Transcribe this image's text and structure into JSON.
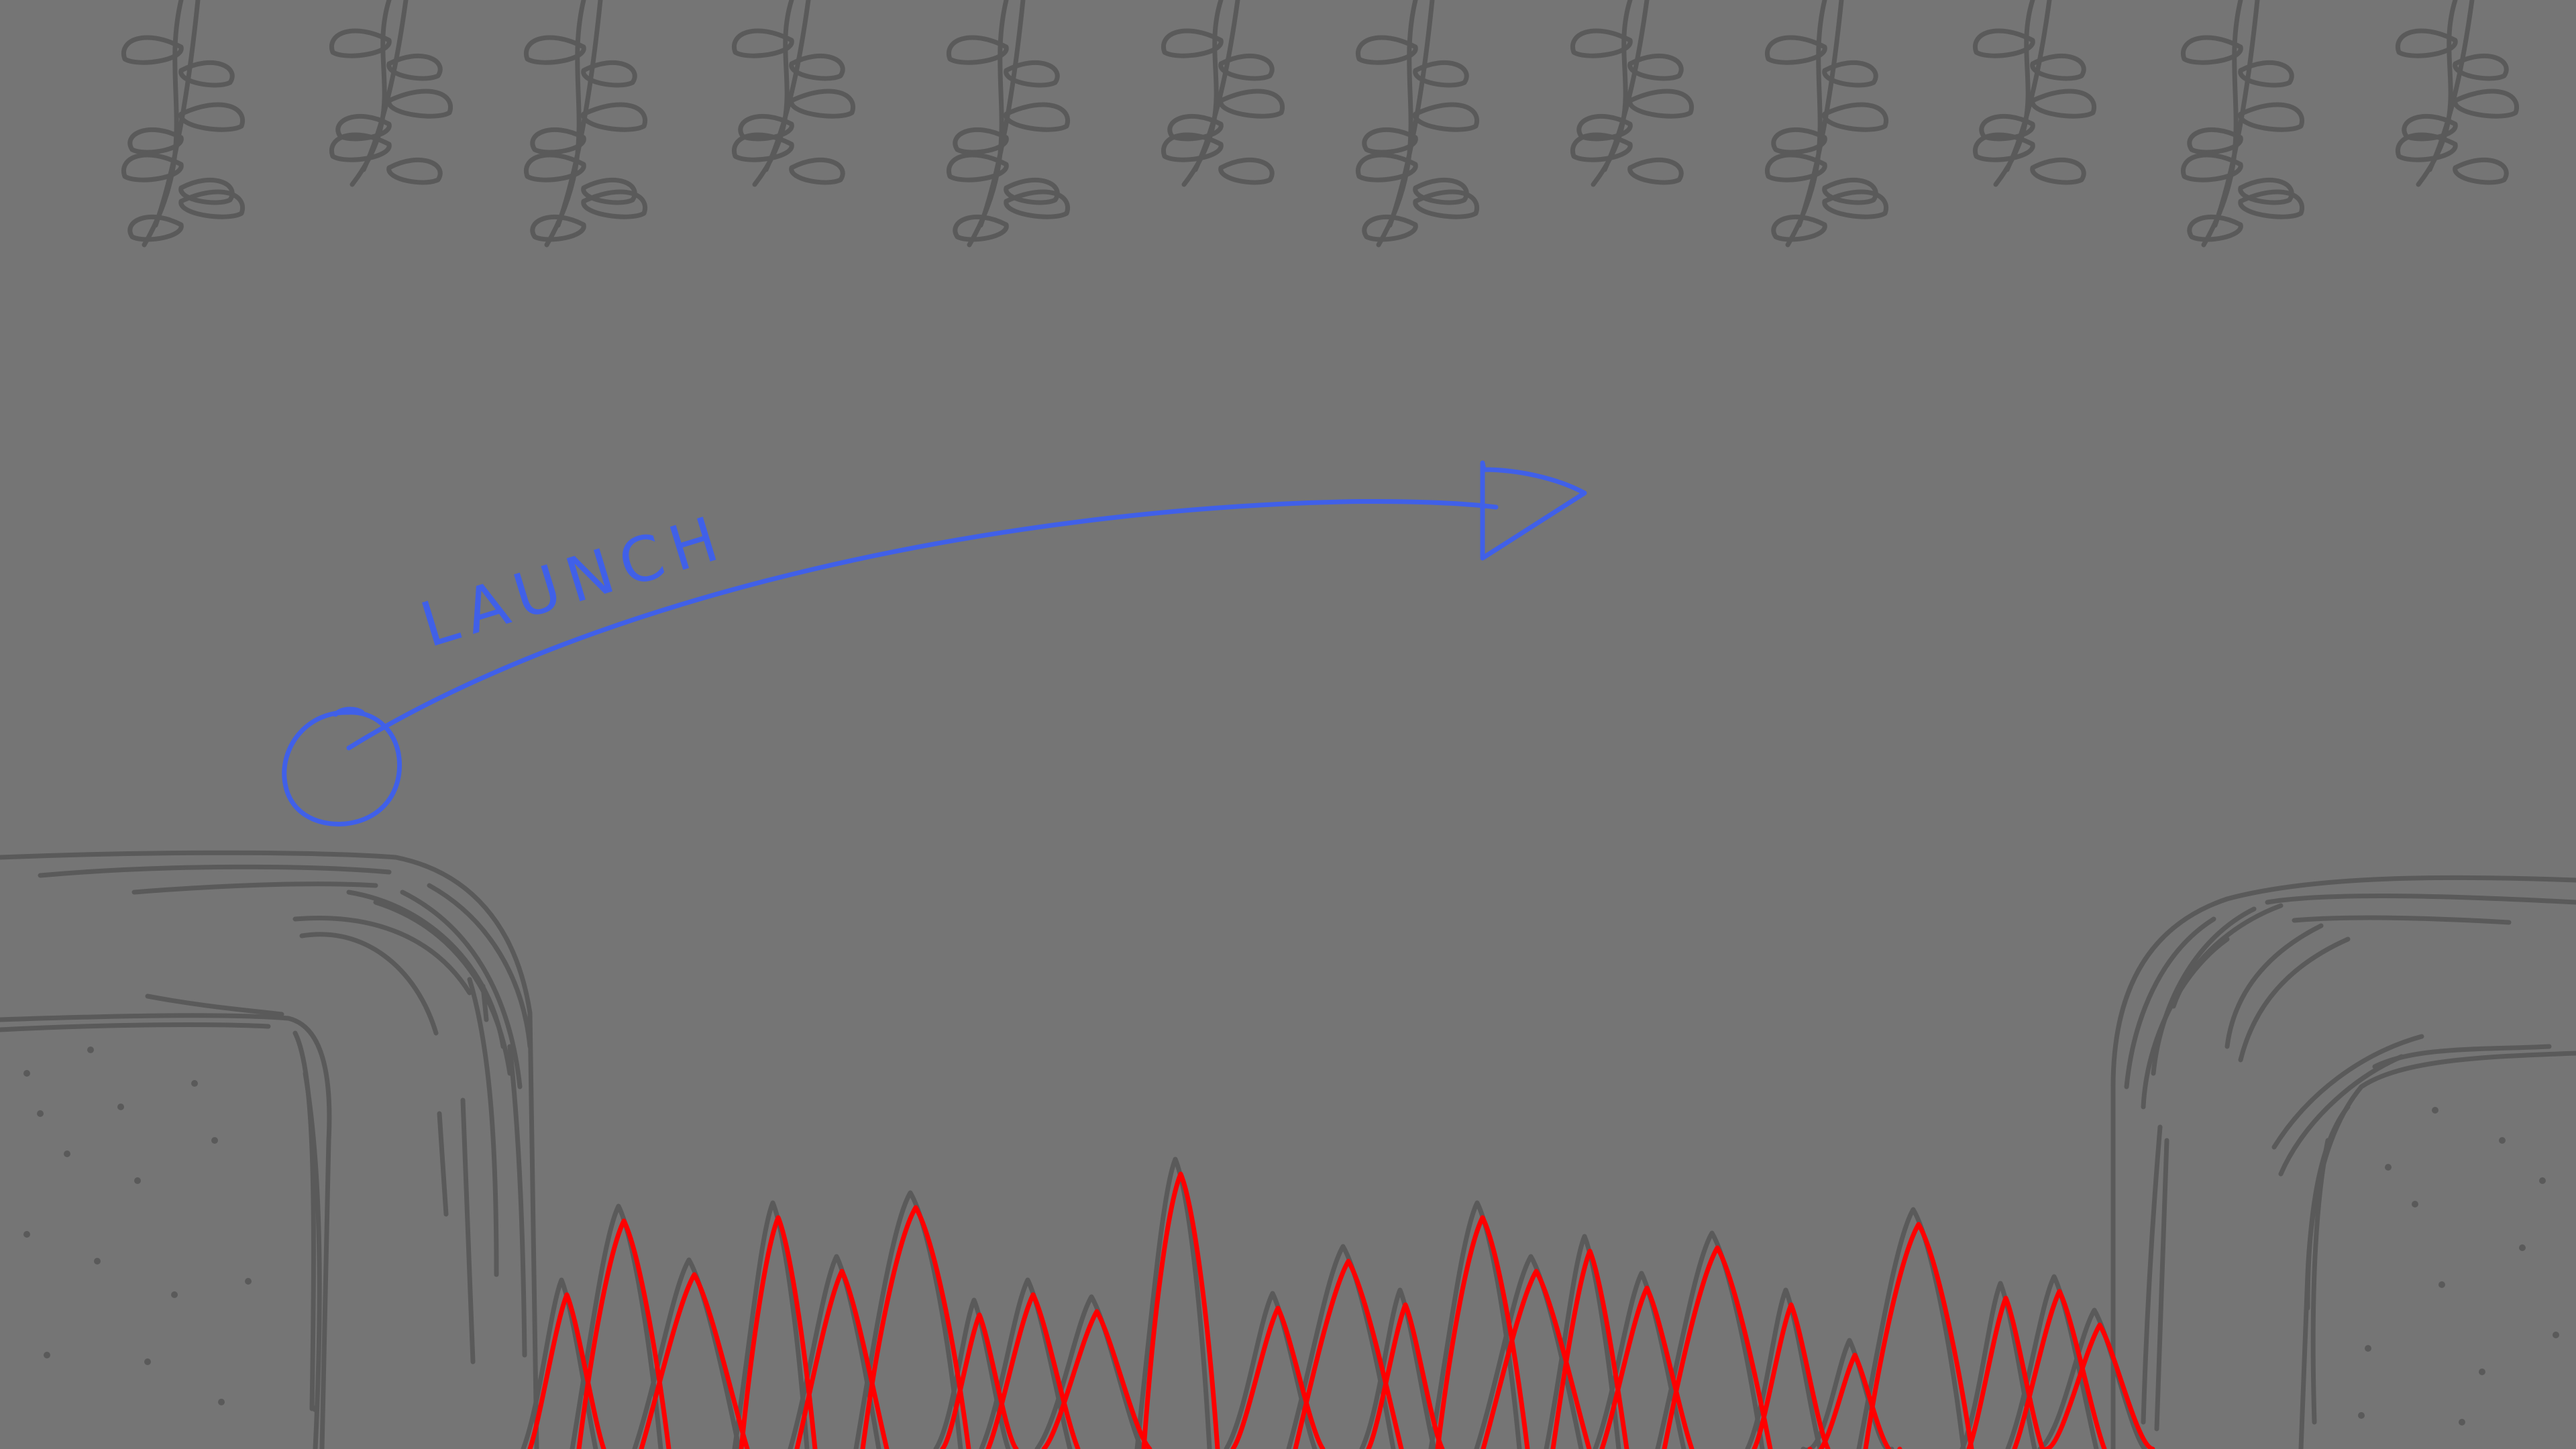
{
  "scene": {
    "background_color": "#757575",
    "sketch_color": "#5a5a5a",
    "spike_color": "#ff0000",
    "annotation_color": "#4060e8"
  },
  "annotation": {
    "label": "LAUNCH",
    "icons": [
      "ball-icon",
      "trajectory-arrow-icon"
    ]
  },
  "hazards": {
    "spikes": "spikes-hazard",
    "vines": "hanging-vines"
  }
}
